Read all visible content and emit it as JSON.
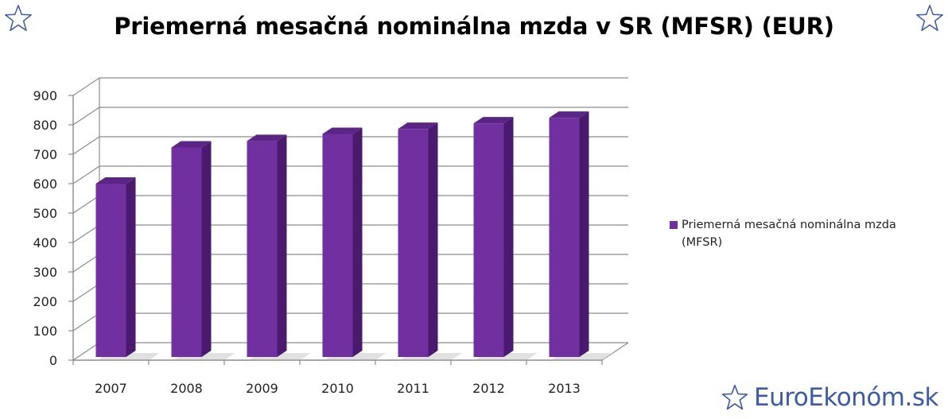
{
  "colors": {
    "bar_front": "#7030a0",
    "bar_side": "#4a1a6e",
    "bar_top": "#5b2585",
    "grid": "#8c8c8c",
    "brand": "#3d5aa8"
  },
  "icons": {
    "corner": "star-outline-icon",
    "brand": "star-outline-icon"
  },
  "brand": {
    "text": "EuroEkonóm.sk"
  },
  "chart_data": {
    "type": "bar",
    "title": "Priemerná mesačná nominálna mzda v SR (MFSR) (EUR)",
    "categories": [
      "2007",
      "2008",
      "2009",
      "2010",
      "2011",
      "2012",
      "2013"
    ],
    "series": [
      {
        "name": "Priemerná mesačná nominálna mzda (MFSR)",
        "values": [
          600,
          723,
          745,
          769,
          786,
          805,
          824
        ]
      }
    ],
    "ylim": [
      0,
      900
    ],
    "yticks": [
      "0",
      "100",
      "200",
      "300",
      "400",
      "500",
      "600",
      "700",
      "800",
      "900"
    ],
    "grid": true,
    "legend": "right",
    "style": "3d"
  }
}
